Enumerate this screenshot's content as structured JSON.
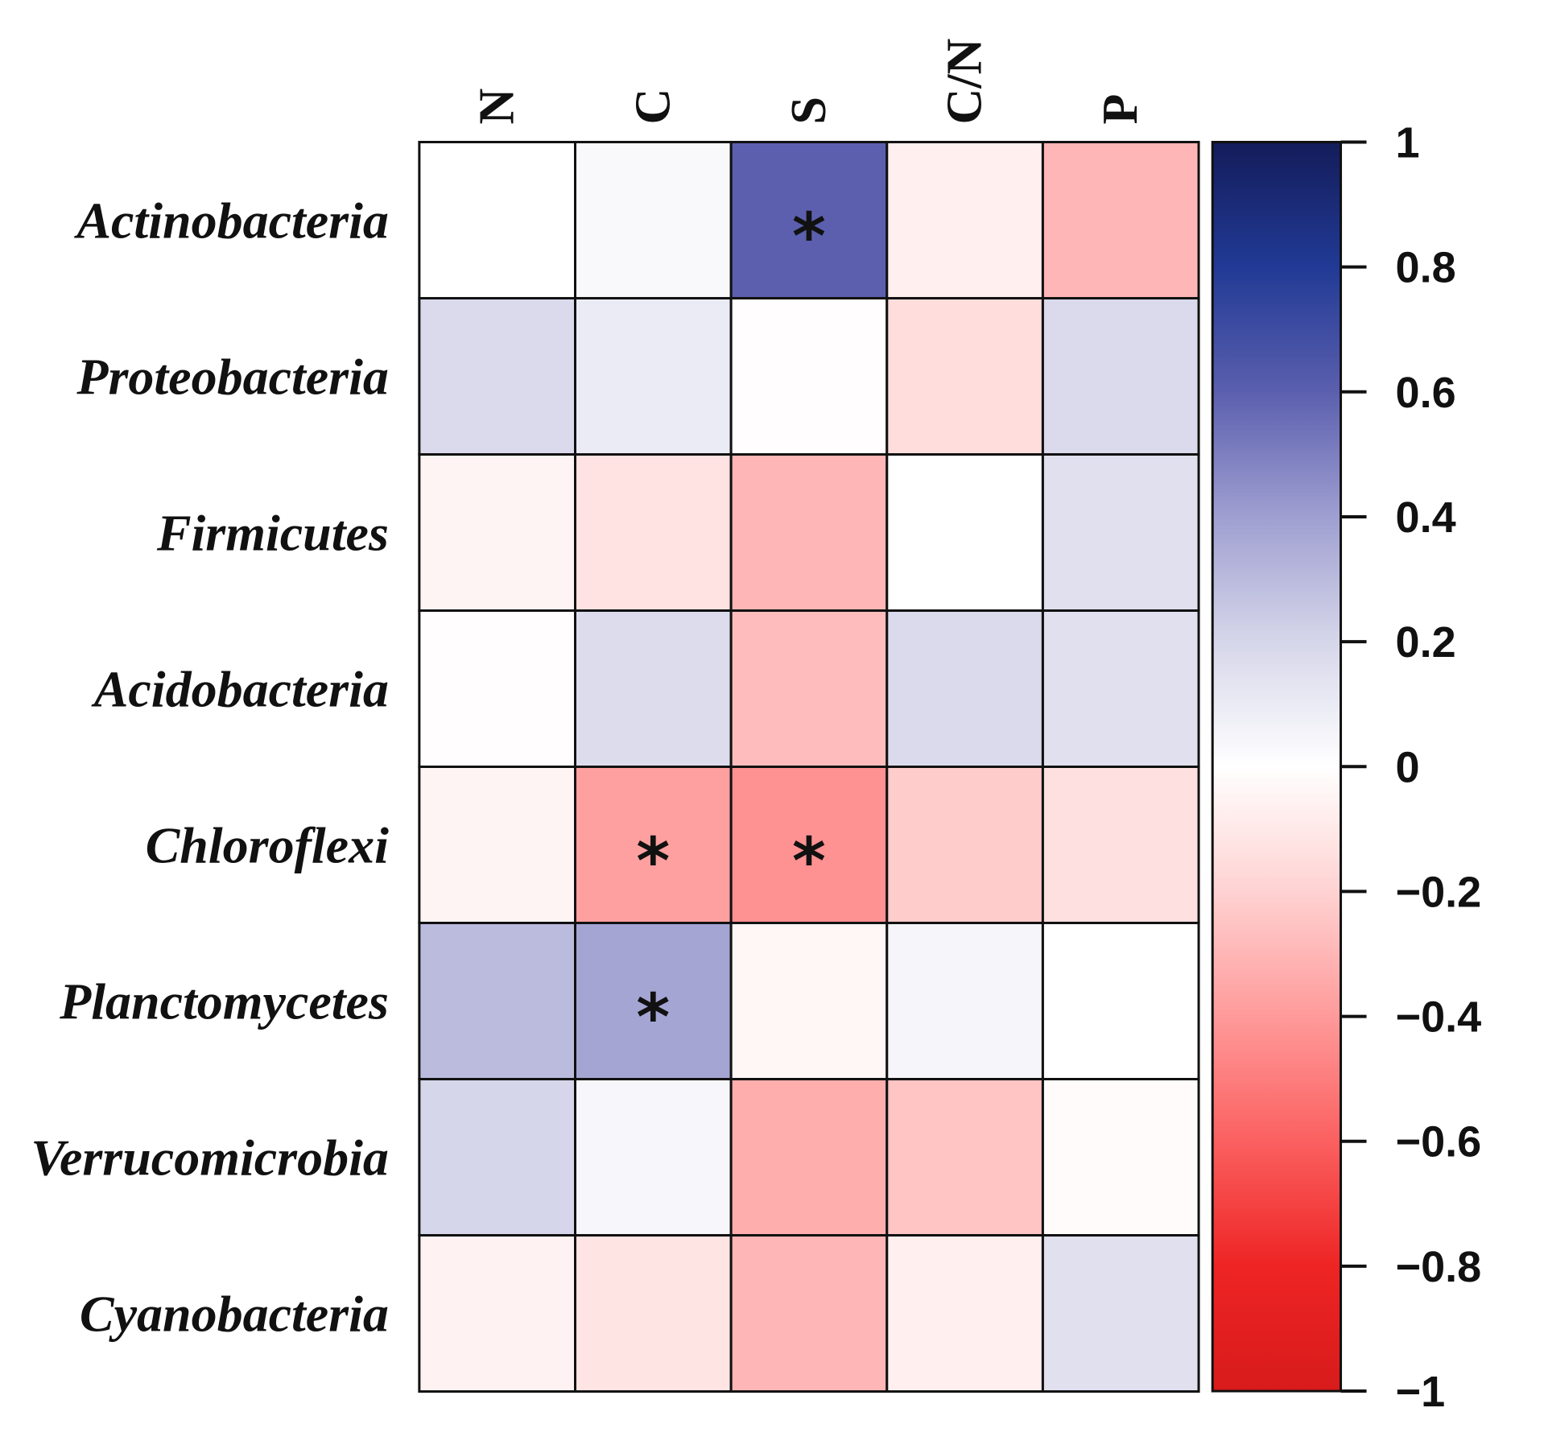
{
  "chart_data": {
    "type": "heatmap",
    "title": "",
    "rows": [
      "Actinobacteria",
      "Proteobacteria",
      "Firmicutes",
      "Acidobacteria",
      "Chloroflexi",
      "Planctomycetes",
      "Verrucomicrobia",
      "Cyanobacteria"
    ],
    "columns": [
      "N",
      "C",
      "S",
      "C/N",
      "P"
    ],
    "values": [
      [
        0.0,
        0.03,
        0.6,
        -0.07,
        -0.3
      ],
      [
        0.18,
        0.1,
        -0.01,
        -0.15,
        0.18
      ],
      [
        -0.05,
        -0.13,
        -0.3,
        0.0,
        0.15
      ],
      [
        -0.01,
        0.17,
        -0.28,
        0.18,
        0.15
      ],
      [
        -0.05,
        -0.38,
        -0.43,
        -0.22,
        -0.14
      ],
      [
        0.3,
        0.38,
        -0.04,
        0.05,
        0.0
      ],
      [
        0.2,
        0.04,
        -0.33,
        -0.25,
        -0.02
      ],
      [
        -0.06,
        -0.12,
        -0.3,
        -0.07,
        0.15
      ]
    ],
    "significance": [
      [
        "",
        "",
        "*",
        "",
        ""
      ],
      [
        "",
        "",
        "",
        "",
        ""
      ],
      [
        "",
        "",
        "",
        "",
        ""
      ],
      [
        "",
        "",
        "",
        "",
        ""
      ],
      [
        "",
        "*",
        "*",
        "",
        ""
      ],
      [
        "",
        "*",
        "",
        "",
        ""
      ],
      [
        "",
        "",
        "",
        "",
        ""
      ],
      [
        "",
        "",
        "",
        "",
        ""
      ]
    ],
    "color_scale": {
      "range": [
        -1,
        1
      ],
      "ticks": [
        "1",
        "0.8",
        "0.6",
        "0.4",
        "0.2",
        "0",
        "−0.2",
        "−0.4",
        "−0.6",
        "−0.8",
        "−1"
      ],
      "tick_values": [
        1,
        0.8,
        0.6,
        0.4,
        0.2,
        0,
        -0.2,
        -0.4,
        -0.6,
        -0.8,
        -1
      ],
      "stops": [
        {
          "value": 1,
          "color": "#141c5a"
        },
        {
          "value": 0.8,
          "color": "#213a95"
        },
        {
          "value": 0.6,
          "color": "#5b5fae"
        },
        {
          "value": 0.4,
          "color": "#9f9fd1"
        },
        {
          "value": 0.2,
          "color": "#d6d6ea"
        },
        {
          "value": 0,
          "color": "#ffffff"
        },
        {
          "value": -0.2,
          "color": "#ffd2d2"
        },
        {
          "value": -0.4,
          "color": "#ff9a9a"
        },
        {
          "value": -0.6,
          "color": "#fb6060"
        },
        {
          "value": -0.8,
          "color": "#ee2424"
        },
        {
          "value": -1,
          "color": "#d81b1b"
        }
      ]
    }
  }
}
